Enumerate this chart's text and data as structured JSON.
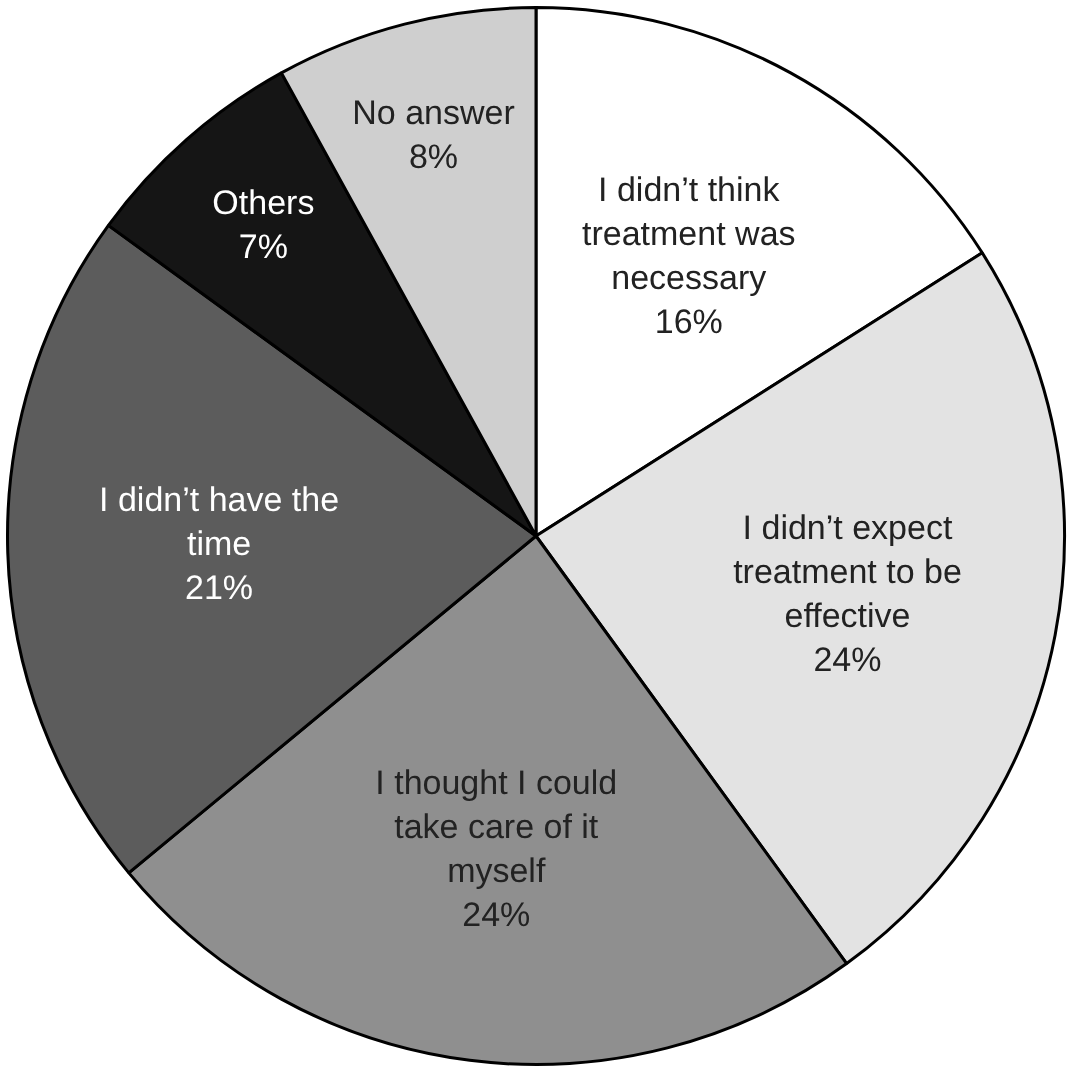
{
  "chart_data": {
    "type": "pie",
    "categories": [
      "I didn’t think treatment was necessary",
      "I didn’t expect treatment to be effective",
      "I thought I could take care of it myself",
      "I didn’t have the time",
      "Others",
      "No answer"
    ],
    "values": [
      16,
      24,
      24,
      21,
      7,
      8
    ],
    "colors": [
      "#ffffff",
      "#e3e3e3",
      "#8f8f8f",
      "#5c5c5c",
      "#151515",
      "#cfcfcf"
    ],
    "value_labels": [
      "16%",
      "24%",
      "24%",
      "21%",
      "7%",
      "8%"
    ]
  }
}
